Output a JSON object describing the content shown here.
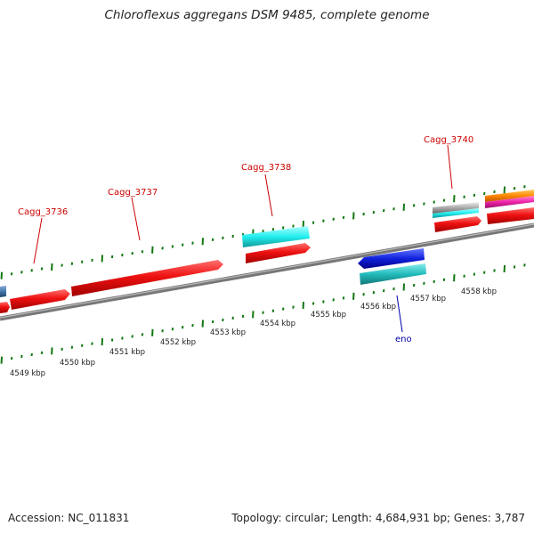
{
  "title": "Chloroflexus aggregans DSM 9485, complete genome",
  "footer": {
    "accession": "Accession: NC_011831",
    "topology": "Topology: circular; Length: 4,684,931 bp; Genes: 3,787"
  },
  "kbp_labels": [
    "4549 kbp",
    "4550 kbp",
    "4551 kbp",
    "4552 kbp",
    "4553 kbp",
    "4554 kbp",
    "4555 kbp",
    "4556 kbp",
    "4557 kbp",
    "4558 kbp"
  ],
  "gene_labels": [
    {
      "text": "Cagg_3736",
      "color": "#cc0000"
    },
    {
      "text": "Cagg_3737",
      "color": "#cc0000"
    },
    {
      "text": "Cagg_3738",
      "color": "#cc0000"
    },
    {
      "text": "Cagg_3740",
      "color": "#cc0000"
    },
    {
      "text": "eno",
      "color": "#0000aa"
    }
  ],
  "colors": {
    "cds": "#ee1111",
    "cyan": "#22dddd",
    "teal": "#22bbbb",
    "blue": "#1122dd",
    "orange": "#ff8800",
    "magenta": "#ee22aa",
    "grey": "#999999",
    "backbone": "#888888",
    "ruler_tick": "#117711"
  }
}
